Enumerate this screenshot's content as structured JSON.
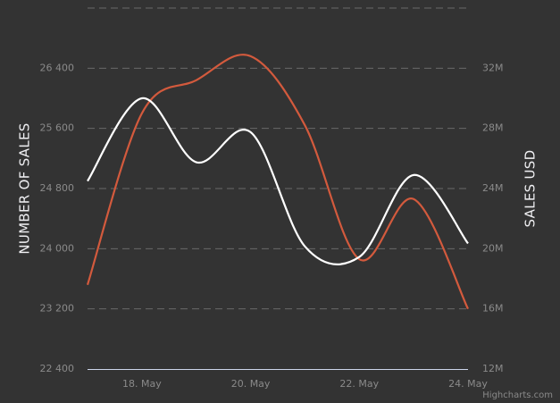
{
  "chart_data": {
    "type": "line",
    "categories": [
      null,
      "18. May",
      null,
      "20. May",
      null,
      "22. May",
      null,
      "24. May"
    ],
    "y_axis_title": "NUMBER OF SALES",
    "y2_axis_title": "SALES USD",
    "credits": "Highcharts.com",
    "series": [
      {
        "color": "#ffffff",
        "values": [
          24900,
          26000,
          25150,
          25550,
          24030,
          23890,
          24980,
          24070
        ]
      },
      {
        "color": "#d35a3d",
        "axis": "y2",
        "values": [
          17600000,
          29000000,
          31200000,
          32800000,
          28200000,
          19300000,
          23300000,
          16000000
        ]
      }
    ],
    "ylim": [
      22400,
      27200
    ],
    "yticks": [
      {
        "value": 22400,
        "label": "22 400"
      },
      {
        "value": 23200,
        "label": "23 200"
      },
      {
        "value": 24000,
        "label": "24 000"
      },
      {
        "value": 24800,
        "label": "24 800"
      },
      {
        "value": 25600,
        "label": "25 600"
      },
      {
        "value": 26400,
        "label": "26 400"
      }
    ],
    "y2lim": [
      12000000,
      36000000
    ],
    "y2ticks": [
      {
        "value": 12000000,
        "label": "12M"
      },
      {
        "value": 16000000,
        "label": "16M"
      },
      {
        "value": 20000000,
        "label": "20M"
      },
      {
        "value": 24000000,
        "label": "24M"
      },
      {
        "value": 28000000,
        "label": "28M"
      },
      {
        "value": 32000000,
        "label": "32M"
      }
    ],
    "grid": true,
    "smooth": true
  }
}
